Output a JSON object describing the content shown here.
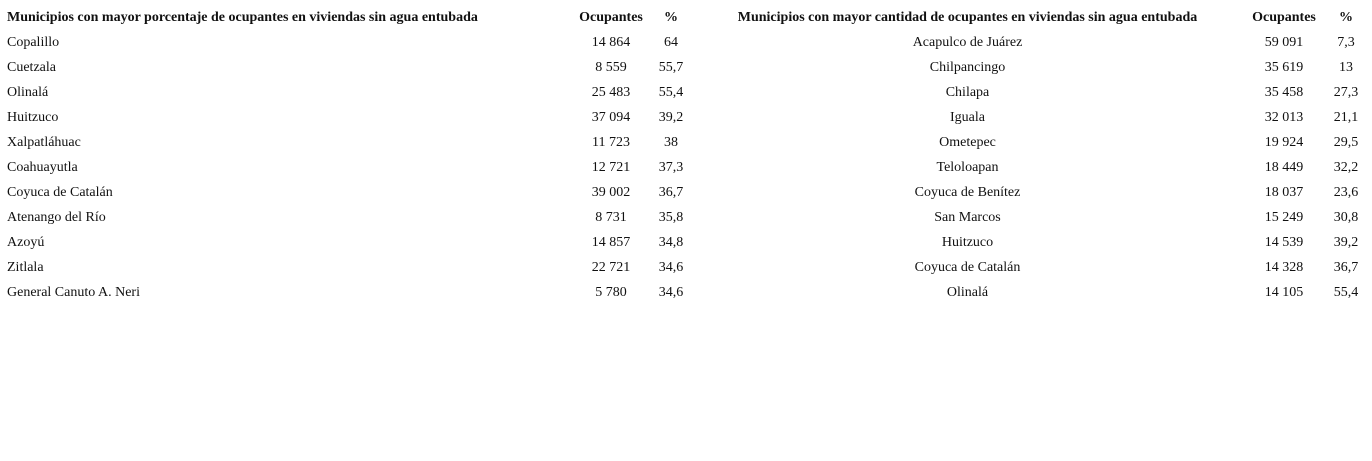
{
  "table": {
    "headers": [
      "Municipios con mayor porcentaje de ocupantes en viviendas sin agua entubada",
      "Ocupantes",
      "%",
      "Municipios con mayor cantidad de ocupantes en viviendas sin agua entubada",
      "Ocupantes",
      "%"
    ],
    "rows": [
      [
        "Copalillo",
        "14 864",
        "64",
        "Acapulco de Juárez",
        "59 091",
        "7,3"
      ],
      [
        "Cuetzala",
        "8 559",
        "55,7",
        "Chilpancingo",
        "35 619",
        "13"
      ],
      [
        "Olinalá",
        "25 483",
        "55,4",
        "Chilapa",
        "35 458",
        "27,3"
      ],
      [
        "Huitzuco",
        "37 094",
        "39,2",
        "Iguala",
        "32 013",
        "21,1"
      ],
      [
        "Xalpatláhuac",
        "11 723",
        "38",
        "Ometepec",
        "19 924",
        "29,5"
      ],
      [
        "Coahuayutla",
        "12 721",
        "37,3",
        "Teloloapan",
        "18 449",
        "32,2"
      ],
      [
        "Coyuca de Catalán",
        "39 002",
        "36,7",
        "Coyuca de Benítez",
        "18 037",
        "23,6"
      ],
      [
        "Atenango del Río",
        "8 731",
        "35,8",
        "San Marcos",
        "15 249",
        "30,8"
      ],
      [
        "Azoyú",
        "14 857",
        "34,8",
        "Huitzuco",
        "14 539",
        "39,2"
      ],
      [
        "Zitlala",
        "22 721",
        "34,6",
        "Coyuca de Catalán",
        "14 328",
        "36,7"
      ],
      [
        "General Canuto A. Neri",
        "5 780",
        "34,6",
        "Olinalá",
        "14 105",
        "55,4"
      ]
    ]
  }
}
